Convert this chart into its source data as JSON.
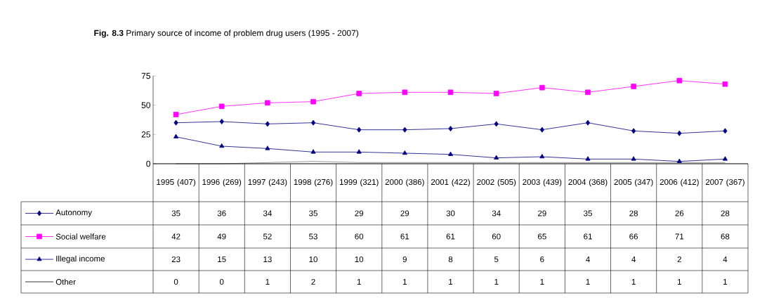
{
  "chart_data": {
    "type": "line",
    "title": "**Fig. 8.3** Primary source of income of problem drug users (1995 - 2007)",
    "categories": [
      "1995 (407)",
      "1996 (269)",
      "1997 (243)",
      "1998 (276)",
      "1999 (321)",
      "2000 (386)",
      "2001 (422)",
      "2002 (505)",
      "2003 (439)",
      "2004 (368)",
      "2005 (347)",
      "2006 (412)",
      "2007 (367)"
    ],
    "series": [
      {
        "name": "Autonomy",
        "color": "#000080",
        "marker": "diamond",
        "values": [
          35,
          36,
          34,
          35,
          29,
          29,
          30,
          34,
          29,
          35,
          28,
          26,
          28
        ]
      },
      {
        "name": "Social welfare",
        "color": "#ff00ff",
        "marker": "square",
        "values": [
          42,
          49,
          52,
          53,
          60,
          61,
          61,
          60,
          65,
          61,
          66,
          71,
          68
        ]
      },
      {
        "name": "Illegal income",
        "color": "#000080",
        "marker": "triangle",
        "values": [
          23,
          15,
          13,
          10,
          10,
          9,
          8,
          5,
          6,
          4,
          4,
          2,
          4
        ]
      },
      {
        "name": "Other",
        "color": "#000000",
        "marker": "none",
        "values": [
          0,
          0,
          1,
          2,
          1,
          1,
          1,
          1,
          1,
          1,
          1,
          1,
          1
        ]
      }
    ],
    "ylim": [
      0,
      75
    ],
    "yticks": [
      0,
      25,
      50,
      75
    ],
    "grid": false,
    "legend": "bottom left",
    "data_labels": true
  }
}
